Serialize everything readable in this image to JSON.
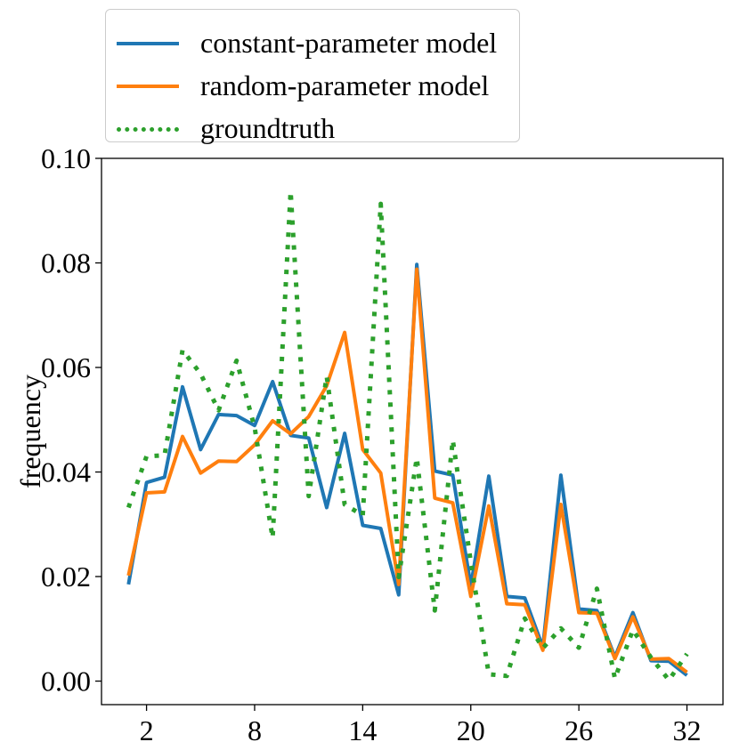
{
  "chart_data": {
    "type": "line",
    "title": "",
    "xlabel": "",
    "ylabel": "frequency",
    "xlim": [
      -0.5,
      34
    ],
    "ylim": [
      -0.0045,
      0.1
    ],
    "xticks": [
      2,
      8,
      14,
      20,
      26,
      32
    ],
    "yticks": [
      0.0,
      0.02,
      0.04,
      0.06,
      0.08,
      0.1
    ],
    "ytick_labels": [
      "0.00",
      "0.02",
      "0.04",
      "0.06",
      "0.08",
      "0.10"
    ],
    "legend_position": "above-left",
    "grid": false,
    "x": [
      1,
      2,
      3,
      4,
      5,
      6,
      7,
      8,
      9,
      10,
      11,
      12,
      13,
      14,
      15,
      16,
      17,
      18,
      19,
      20,
      21,
      22,
      23,
      24,
      25,
      26,
      27,
      28,
      29,
      30,
      31,
      32
    ],
    "series": [
      {
        "name": "constant-parameter model",
        "color": "#1f77b4",
        "style": "solid",
        "values": [
          0.0185,
          0.038,
          0.039,
          0.0563,
          0.0443,
          0.051,
          0.0508,
          0.0489,
          0.0573,
          0.047,
          0.0465,
          0.0332,
          0.0474,
          0.0298,
          0.0292,
          0.0165,
          0.0797,
          0.0402,
          0.0394,
          0.0182,
          0.0392,
          0.0162,
          0.0159,
          0.0065,
          0.0394,
          0.0138,
          0.0135,
          0.0046,
          0.0131,
          0.0039,
          0.0038,
          0.0011
        ]
      },
      {
        "name": "random-parameter model",
        "color": "#ff7f0e",
        "style": "solid",
        "values": [
          0.0202,
          0.036,
          0.0362,
          0.0468,
          0.0398,
          0.0421,
          0.042,
          0.0452,
          0.0498,
          0.0473,
          0.0506,
          0.0565,
          0.0667,
          0.0443,
          0.0398,
          0.0185,
          0.0788,
          0.035,
          0.0341,
          0.0162,
          0.0335,
          0.0148,
          0.0146,
          0.0059,
          0.0338,
          0.0131,
          0.013,
          0.0043,
          0.0123,
          0.0042,
          0.0043,
          0.0017
        ]
      },
      {
        "name": "groundtruth",
        "color": "#2ca02c",
        "style": "dotted",
        "values": [
          0.0332,
          0.043,
          0.0432,
          0.0633,
          0.0588,
          0.0518,
          0.0613,
          0.0485,
          0.0274,
          0.0937,
          0.0354,
          0.0583,
          0.0338,
          0.0317,
          0.0913,
          0.0199,
          0.0427,
          0.0135,
          0.0461,
          0.0228,
          0.0013,
          0.001,
          0.012,
          0.0063,
          0.0101,
          0.0064,
          0.0177,
          0.0005,
          0.0098,
          0.0045,
          0.0002,
          0.0052
        ]
      }
    ]
  }
}
